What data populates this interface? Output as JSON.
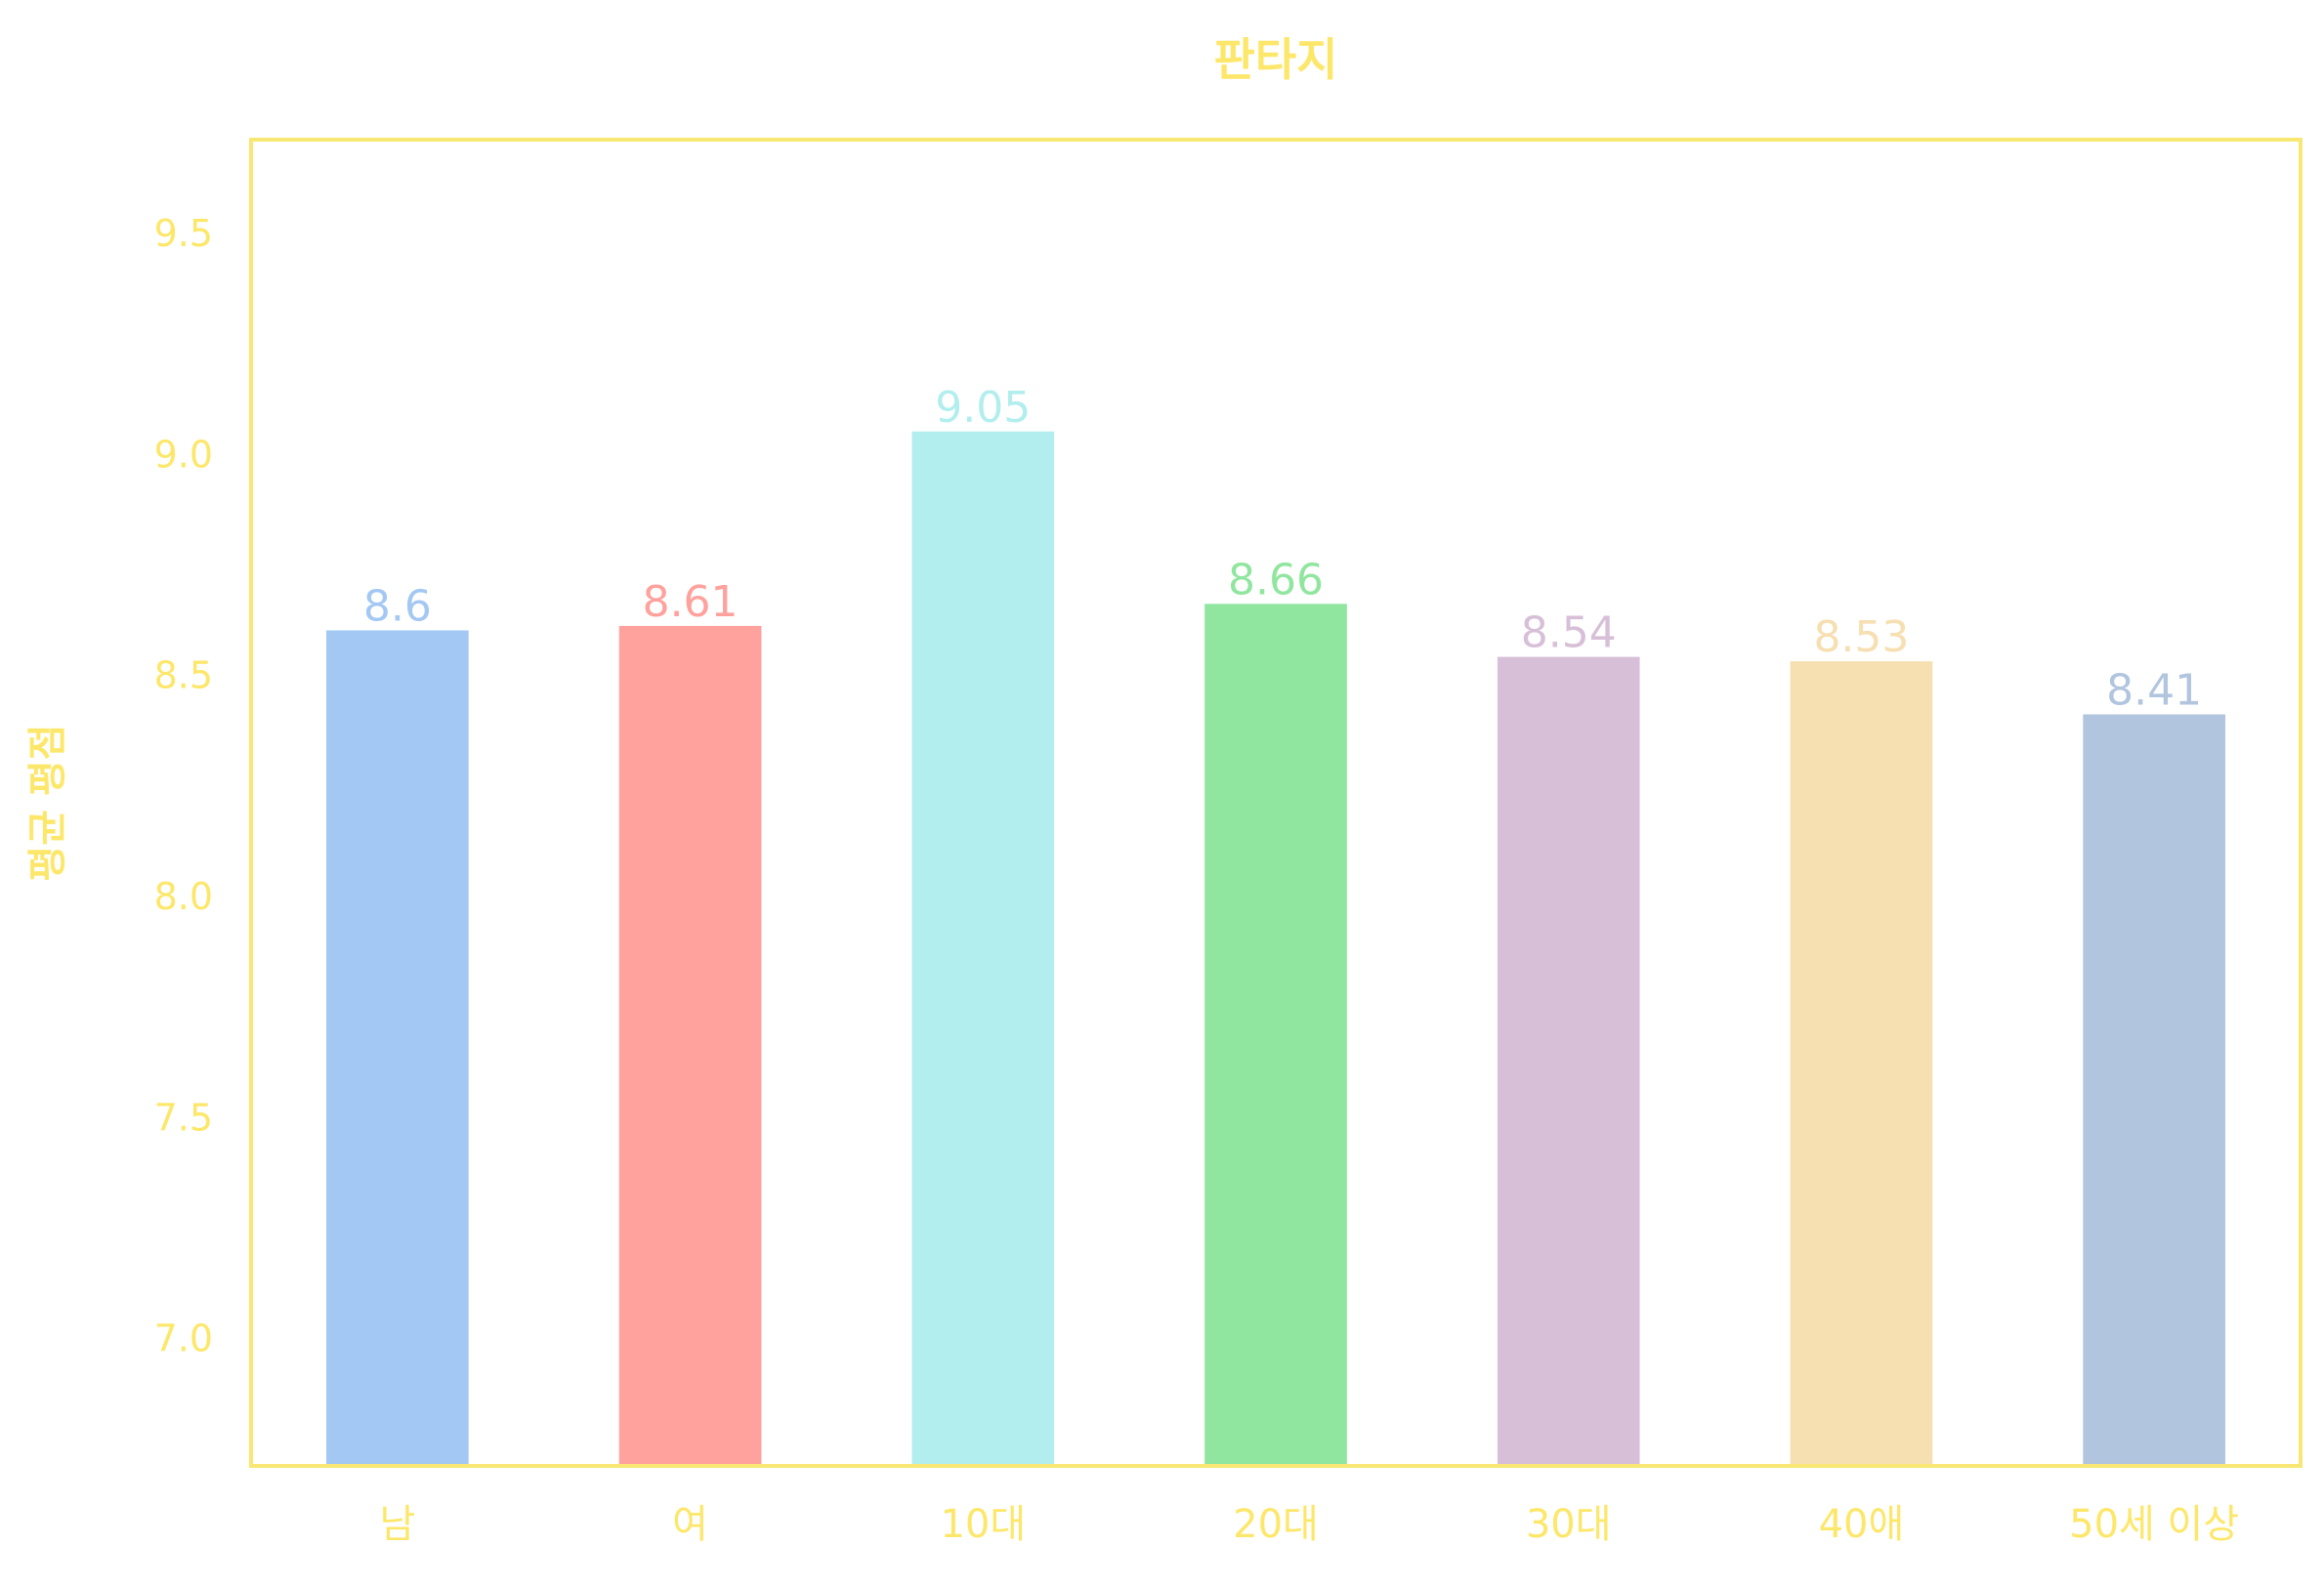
{
  "chart_data": {
    "type": "bar",
    "title": "판타지",
    "xlabel": "",
    "ylabel": "평균 평점",
    "categories": [
      "남",
      "여",
      "10대",
      "20대",
      "30대",
      "40애",
      "50세 이상"
    ],
    "values": [
      8.6,
      8.61,
      9.05,
      8.66,
      8.54,
      8.53,
      8.41
    ],
    "value_labels": [
      "8.6",
      "8.61",
      "9.05",
      "8.66",
      "8.54",
      "8.53",
      "8.41"
    ],
    "bar_colors": [
      "#a3c8f3",
      "#ffa19c",
      "#b2eeee",
      "#91e69f",
      "#d7bfd8",
      "#f6dfb1",
      "#b1c5df"
    ],
    "ylim": [
      6.71,
      9.71
    ],
    "yticks": [
      7.0,
      7.5,
      8.0,
      8.5,
      9.0,
      9.5
    ],
    "ytick_labels": [
      "7.0",
      "7.5",
      "8.0",
      "8.5",
      "9.0",
      "9.5"
    ],
    "grid": false,
    "legend": "none",
    "text_color": "#fde76a",
    "frame_color": "#f8e873"
  }
}
